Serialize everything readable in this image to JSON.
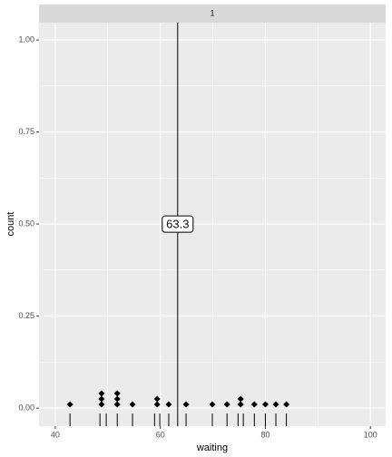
{
  "chart_data": {
    "type": "dotplot",
    "strip": "1",
    "xlabel": "waiting",
    "ylabel": "count",
    "xlim": [
      36.9,
      102.9
    ],
    "ylim": [
      -0.049,
      1.047
    ],
    "xticks": [
      40,
      60,
      80,
      100
    ],
    "xminor": [
      50,
      70,
      90
    ],
    "yticks": [
      {
        "value": 0,
        "label": "0.00"
      },
      {
        "value": 0.25,
        "label": "0.25"
      },
      {
        "value": 0.5,
        "label": "0.50"
      },
      {
        "value": 0.75,
        "label": "0.75"
      },
      {
        "value": 1,
        "label": "1.00"
      }
    ],
    "yminor": [
      0.125,
      0.375,
      0.625,
      0.875
    ],
    "grid": true,
    "points": {
      "color": "#000000",
      "x": [
        42.8,
        48.8,
        48.8,
        48.8,
        51.8,
        51.8,
        51.8,
        54.7,
        59.4,
        59.4,
        61.6,
        64.9,
        69.9,
        72.7,
        75.3,
        75.3,
        77.9,
        80,
        82,
        84
      ],
      "y": [
        0.01,
        0.01,
        0.025,
        0.04,
        0.01,
        0.025,
        0.04,
        0.01,
        0.01,
        0.025,
        0.01,
        0.01,
        0.01,
        0.01,
        0.01,
        0.025,
        0.01,
        0.01,
        0.01,
        0.01
      ]
    },
    "rug": [
      42.8,
      48.5,
      49.7,
      51.8,
      54.7,
      58.9,
      59.9,
      61.6,
      64.9,
      69.9,
      72.7,
      74.8,
      75.8,
      77.9,
      80,
      82,
      84
    ],
    "mean": {
      "value": 63.3,
      "label": "63.3",
      "y": 0.5
    }
  }
}
